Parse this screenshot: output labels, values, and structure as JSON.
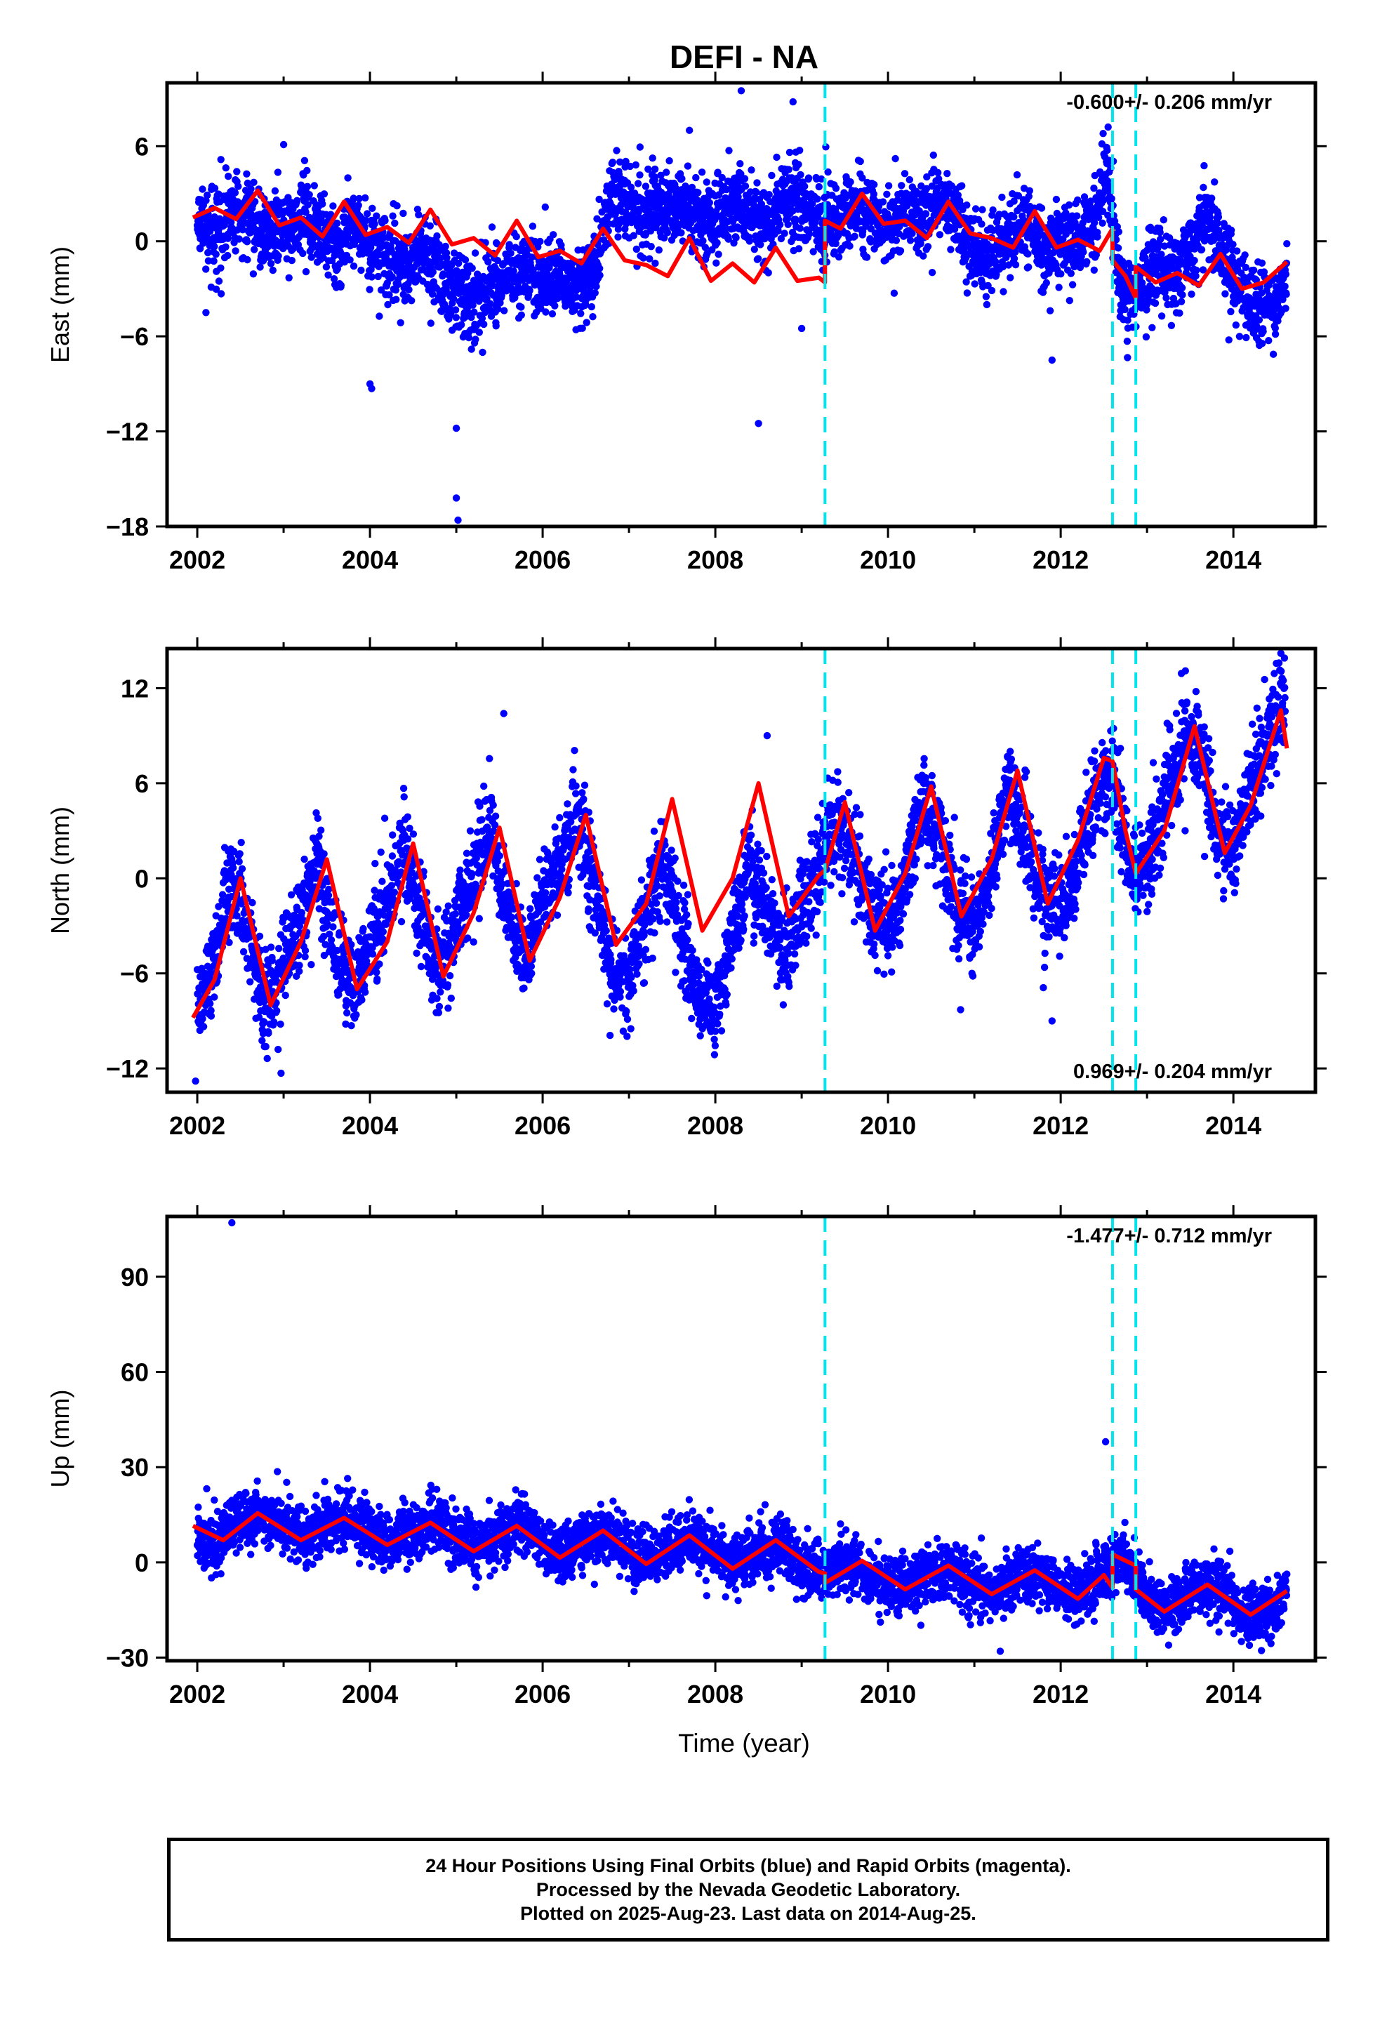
{
  "figure": {
    "title": "DEFI - NA",
    "x_axis_label": "Time (year)"
  },
  "colors": {
    "data_points": "#0000ff",
    "model_fit": "#ff0000",
    "offset_lines": "#00e5ee",
    "frame": "#000000"
  },
  "chart_data": [
    {
      "type": "scatter",
      "component": "East",
      "ylabel": "East (mm)",
      "xlim": [
        2001.65,
        2014.95
      ],
      "ylim": [
        -18,
        10
      ],
      "xticks": [
        2002,
        2004,
        2006,
        2008,
        2010,
        2012,
        2014
      ],
      "xtick_labels": [
        "2002",
        "2004",
        "2006",
        "2008",
        "2010",
        "2012",
        "2014"
      ],
      "yticks": [
        -18,
        -12,
        -6,
        0,
        6
      ],
      "ytick_labels": [
        "−18",
        "−12",
        "−6",
        "0",
        "6"
      ],
      "rate_label": "-0.600+/- 0.206 mm/yr",
      "rate_position": "top-right",
      "offset_epochs": [
        2009.27,
        2012.6,
        2012.87
      ],
      "series": [
        {
          "kind": "points",
          "x": [
            2002.0,
            2002.2,
            2002.4,
            2002.6,
            2002.8,
            2003.0,
            2003.2,
            2003.4,
            2003.6,
            2003.8,
            2004.0,
            2004.2,
            2004.4,
            2004.6,
            2004.8,
            2005.0,
            2005.2,
            2005.4,
            2005.6,
            2005.8,
            2006.0,
            2006.2,
            2006.4,
            2006.6,
            2006.8,
            2007.0,
            2007.2,
            2007.4,
            2007.6,
            2007.8,
            2008.0,
            2008.2,
            2008.4,
            2008.6,
            2008.8,
            2009.0,
            2009.2,
            2009.4,
            2009.6,
            2009.8,
            2010.0,
            2010.2,
            2010.4,
            2010.6,
            2010.8,
            2011.0,
            2011.2,
            2011.4,
            2011.6,
            2011.8,
            2012.0,
            2012.2,
            2012.4,
            2012.55,
            2012.7,
            2012.9,
            2013.1,
            2013.3,
            2013.5,
            2013.7,
            2013.9,
            2014.1,
            2014.3,
            2014.5,
            2014.62
          ],
          "y": [
            1.0,
            0.6,
            1.8,
            1.4,
            0.3,
            0.8,
            1.9,
            0.7,
            -0.6,
            1.1,
            -0.3,
            -0.8,
            -1.6,
            -0.6,
            -1.9,
            -3.2,
            -3.8,
            -2.8,
            -2.2,
            -1.8,
            -2.4,
            -2.0,
            -3.1,
            -1.8,
            3.1,
            2.3,
            1.6,
            1.9,
            2.2,
            1.2,
            1.6,
            2.7,
            1.7,
            1.1,
            2.9,
            2.2,
            1.3,
            1.1,
            2.1,
            1.8,
            0.8,
            1.9,
            1.2,
            2.4,
            1.3,
            -0.8,
            -1.2,
            0.3,
            1.1,
            -0.6,
            0.2,
            -0.3,
            1.3,
            4.8,
            -2.8,
            -3.4,
            -1.4,
            -2.2,
            -0.8,
            1.8,
            -1.2,
            -3.2,
            -4.0,
            -3.6,
            -2.4
          ]
        },
        {
          "kind": "points",
          "note": "outliers",
          "x": [
            2002.1,
            2003.0,
            2004.0,
            2004.02,
            2005.0,
            2005.0,
            2005.02,
            2007.7,
            2008.3,
            2008.5,
            2008.9,
            2009.0,
            2011.9
          ],
          "y": [
            -4.5,
            6.1,
            -9.0,
            -9.3,
            -11.8,
            -16.2,
            -17.6,
            7.0,
            9.5,
            -11.5,
            8.8,
            -5.5,
            -7.5
          ]
        },
        {
          "kind": "line",
          "x": [
            2001.95,
            2002.2,
            2002.45,
            2002.7,
            2002.95,
            2003.2,
            2003.45,
            2003.7,
            2003.95,
            2004.2,
            2004.45,
            2004.7,
            2004.95,
            2005.2,
            2005.45,
            2005.7,
            2005.95,
            2006.2,
            2006.45,
            2006.7,
            2006.95,
            2007.2,
            2007.45,
            2007.7,
            2007.95,
            2008.2,
            2008.45,
            2008.7,
            2008.95,
            2009.2,
            2009.27,
            2009.27,
            2009.45,
            2009.7,
            2009.95,
            2010.2,
            2010.45,
            2010.7,
            2010.95,
            2011.2,
            2011.45,
            2011.7,
            2011.95,
            2012.2,
            2012.45,
            2012.6,
            2012.6,
            2012.75,
            2012.87,
            2012.87,
            2013.1,
            2013.35,
            2013.6,
            2013.85,
            2014.1,
            2014.35,
            2014.62
          ],
          "y": [
            1.5,
            2.1,
            1.4,
            3.2,
            1.0,
            1.5,
            0.3,
            2.5,
            0.4,
            0.9,
            -0.1,
            2.0,
            -0.2,
            0.2,
            -0.9,
            1.3,
            -1.0,
            -0.6,
            -1.4,
            0.8,
            -1.2,
            -1.5,
            -2.2,
            0.2,
            -2.5,
            -1.4,
            -2.6,
            -0.4,
            -2.5,
            -2.3,
            -2.6,
            1.3,
            0.8,
            3.0,
            1.1,
            1.3,
            0.2,
            2.5,
            0.5,
            0.2,
            -0.4,
            1.9,
            -0.4,
            0.1,
            -0.6,
            0.8,
            -1.2,
            -2.2,
            -3.6,
            -1.6,
            -2.6,
            -2.0,
            -2.8,
            -0.8,
            -3.0,
            -2.6,
            -1.3
          ]
        }
      ]
    },
    {
      "type": "scatter",
      "component": "North",
      "ylabel": "North (mm)",
      "xlim": [
        2001.65,
        2014.95
      ],
      "ylim": [
        -13.5,
        14.5
      ],
      "xticks": [
        2002,
        2004,
        2006,
        2008,
        2010,
        2012,
        2014
      ],
      "xtick_labels": [
        "2002",
        "2004",
        "2006",
        "2008",
        "2010",
        "2012",
        "2014"
      ],
      "yticks": [
        -12,
        -6,
        0,
        6,
        12
      ],
      "ytick_labels": [
        "−12",
        "−6",
        "0",
        "6",
        "12"
      ],
      "rate_label": "0.969+/- 0.204 mm/yr",
      "rate_position": "bottom-right",
      "offset_epochs": [
        2009.27,
        2012.6,
        2012.87
      ],
      "series": [
        {
          "kind": "points",
          "x": [
            2002.0,
            2002.2,
            2002.4,
            2002.6,
            2002.8,
            2003.0,
            2003.2,
            2003.4,
            2003.6,
            2003.8,
            2004.0,
            2004.2,
            2004.4,
            2004.6,
            2004.8,
            2005.0,
            2005.2,
            2005.4,
            2005.6,
            2005.8,
            2006.0,
            2006.2,
            2006.4,
            2006.6,
            2006.8,
            2007.0,
            2007.2,
            2007.4,
            2007.6,
            2007.8,
            2008.0,
            2008.2,
            2008.4,
            2008.6,
            2008.8,
            2009.0,
            2009.2,
            2009.4,
            2009.6,
            2009.8,
            2010.0,
            2010.2,
            2010.4,
            2010.6,
            2010.8,
            2011.0,
            2011.2,
            2011.4,
            2011.6,
            2011.8,
            2012.0,
            2012.2,
            2012.4,
            2012.6,
            2012.8,
            2013.0,
            2013.2,
            2013.4,
            2013.6,
            2013.8,
            2014.0,
            2014.2,
            2014.4,
            2014.6
          ],
          "y": [
            -8.2,
            -4.8,
            0.3,
            -3.6,
            -8.4,
            -5.5,
            -2.4,
            0.9,
            -4.8,
            -7.0,
            -4.2,
            -1.5,
            2.1,
            -2.5,
            -6.1,
            -3.1,
            0.2,
            3.2,
            -2.0,
            -5.6,
            -1.2,
            0.4,
            4.1,
            -0.8,
            -5.8,
            -6.5,
            -2.2,
            1.6,
            -3.5,
            -7.2,
            -8.0,
            -3.4,
            1.2,
            -2.1,
            -5.2,
            -1.6,
            0.6,
            3.8,
            1.4,
            -1.9,
            -3.0,
            0.1,
            4.6,
            2.4,
            -2.2,
            -2.9,
            1.2,
            5.6,
            2.1,
            -1.4,
            -2.0,
            1.3,
            5.2,
            7.1,
            0.4,
            1.1,
            4.6,
            7.9,
            9.2,
            3.2,
            1.6,
            5.6,
            9.1,
            10.8
          ]
        },
        {
          "kind": "points",
          "note": "outliers",
          "x": [
            2001.98,
            2002.97,
            2005.55,
            2008.6,
            2011.9,
            2014.55
          ],
          "y": [
            -12.8,
            -12.3,
            10.4,
            9.0,
            -9.0,
            14.2
          ]
        },
        {
          "kind": "line",
          "x": [
            2001.95,
            2002.2,
            2002.5,
            2002.85,
            2003.2,
            2003.5,
            2003.85,
            2004.2,
            2004.5,
            2004.85,
            2005.2,
            2005.5,
            2005.85,
            2006.2,
            2006.5,
            2006.85,
            2007.2,
            2007.5,
            2007.85,
            2008.2,
            2008.5,
            2008.85,
            2009.2,
            2009.27,
            2009.5,
            2009.85,
            2010.2,
            2010.5,
            2010.85,
            2011.2,
            2011.5,
            2011.85,
            2012.2,
            2012.5,
            2012.6,
            2012.75,
            2012.87,
            2013.2,
            2013.55,
            2013.9,
            2014.2,
            2014.55,
            2014.62
          ],
          "y": [
            -8.8,
            -6.4,
            0.0,
            -8.0,
            -4.0,
            1.2,
            -7.0,
            -4.0,
            2.2,
            -6.2,
            -2.2,
            3.2,
            -5.2,
            -1.2,
            4.0,
            -4.2,
            -1.6,
            5.0,
            -3.3,
            0.0,
            6.0,
            -2.4,
            0.2,
            0.5,
            4.8,
            -3.3,
            0.3,
            5.8,
            -2.4,
            1.2,
            6.8,
            -1.6,
            2.4,
            7.6,
            7.4,
            3.0,
            0.3,
            3.0,
            9.6,
            1.6,
            4.6,
            10.6,
            8.2
          ]
        }
      ]
    },
    {
      "type": "scatter",
      "component": "Up",
      "ylabel": "Up (mm)",
      "xlim": [
        2001.65,
        2014.95
      ],
      "ylim": [
        -31,
        109
      ],
      "xticks": [
        2002,
        2004,
        2006,
        2008,
        2010,
        2012,
        2014
      ],
      "xtick_labels": [
        "2002",
        "2004",
        "2006",
        "2008",
        "2010",
        "2012",
        "2014"
      ],
      "yticks": [
        -30,
        0,
        30,
        60,
        90
      ],
      "ytick_labels": [
        "−30",
        "0",
        "30",
        "60",
        "90"
      ],
      "rate_label": "-1.477+/- 0.712 mm/yr",
      "rate_position": "top-right",
      "offset_epochs": [
        2009.27,
        2012.6,
        2012.87
      ],
      "series": [
        {
          "kind": "points",
          "x": [
            2002.0,
            2002.25,
            2002.5,
            2002.75,
            2003.0,
            2003.25,
            2003.5,
            2003.75,
            2004.0,
            2004.25,
            2004.5,
            2004.75,
            2005.0,
            2005.25,
            2005.5,
            2005.75,
            2006.0,
            2006.25,
            2006.5,
            2006.75,
            2007.0,
            2007.25,
            2007.5,
            2007.75,
            2008.0,
            2008.25,
            2008.5,
            2008.75,
            2009.0,
            2009.25,
            2009.5,
            2009.75,
            2010.0,
            2010.25,
            2010.5,
            2010.75,
            2011.0,
            2011.25,
            2011.5,
            2011.75,
            2012.0,
            2012.25,
            2012.5,
            2012.75,
            2013.0,
            2013.25,
            2013.5,
            2013.75,
            2014.0,
            2014.25,
            2014.5,
            2014.62
          ],
          "y": [
            8.0,
            6.5,
            14.0,
            15.5,
            12.0,
            8.0,
            11.5,
            14.0,
            9.0,
            6.5,
            10.0,
            12.5,
            7.0,
            4.5,
            9.0,
            12.0,
            6.0,
            2.5,
            7.5,
            9.5,
            2.5,
            0.5,
            5.0,
            7.5,
            3.0,
            -1.0,
            3.0,
            6.0,
            -1.5,
            -4.0,
            -0.5,
            -3.5,
            -7.0,
            -8.0,
            -3.5,
            -2.0,
            -7.5,
            -9.0,
            -4.0,
            -3.5,
            -9.0,
            -10.0,
            -2.0,
            1.0,
            -12.0,
            -15.0,
            -9.0,
            -6.5,
            -13.0,
            -17.0,
            -14.0,
            -10.0
          ]
        },
        {
          "kind": "points",
          "note": "outliers",
          "x": [
            2002.4,
            2012.52,
            2011.3
          ],
          "y": [
            107.0,
            38.0,
            -28.0
          ]
        },
        {
          "kind": "line",
          "x": [
            2001.95,
            2002.3,
            2002.7,
            2003.2,
            2003.7,
            2004.2,
            2004.7,
            2005.2,
            2005.7,
            2006.2,
            2006.7,
            2007.2,
            2007.7,
            2008.2,
            2008.7,
            2009.2,
            2009.27,
            2009.27,
            2009.7,
            2010.2,
            2010.7,
            2011.2,
            2011.7,
            2012.2,
            2012.5,
            2012.6,
            2012.6,
            2012.87,
            2012.87,
            2013.2,
            2013.7,
            2014.2,
            2014.62
          ],
          "y": [
            11.5,
            7.0,
            15.5,
            7.0,
            14.0,
            5.5,
            12.5,
            3.5,
            11.5,
            1.5,
            10.0,
            -0.5,
            8.5,
            -2.0,
            7.0,
            -3.0,
            -3.5,
            -6.5,
            0.5,
            -8.5,
            -1.0,
            -10.0,
            -2.5,
            -11.5,
            -4.0,
            -8.0,
            2.5,
            -1.0,
            -8.5,
            -15.5,
            -7.0,
            -16.5,
            -9.0
          ]
        }
      ]
    }
  ],
  "footer": {
    "line1": "24 Hour Positions Using Final Orbits (blue) and Rapid Orbits (magenta).",
    "line2": "Processed by the Nevada Geodetic Laboratory.",
    "line3": "Plotted on 2025-Aug-23. Last data on 2014-Aug-25."
  }
}
